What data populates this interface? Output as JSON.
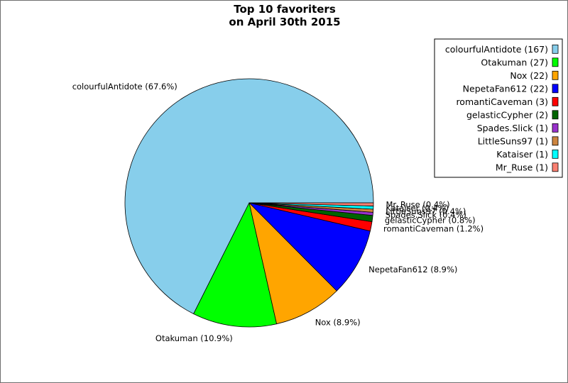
{
  "chart_data": {
    "type": "pie",
    "title": [
      "Top 10 favoriters",
      "on April 30th 2015"
    ],
    "slices": [
      {
        "name": "colourfulAntidote",
        "count": 167,
        "percent_label": "67.6%",
        "color": "#87ceeb"
      },
      {
        "name": "Otakuman",
        "count": 27,
        "percent_label": "10.9%",
        "color": "#00ff00"
      },
      {
        "name": "Nox",
        "count": 22,
        "percent_label": "8.9%",
        "color": "#ffa500"
      },
      {
        "name": "NepetaFan612",
        "count": 22,
        "percent_label": "8.9%",
        "color": "#0000ff"
      },
      {
        "name": "romantiCaveman",
        "count": 3,
        "percent_label": "1.2%",
        "color": "#ff0000"
      },
      {
        "name": "gelasticCypher",
        "count": 2,
        "percent_label": "0.8%",
        "color": "#006400"
      },
      {
        "name": "Spades.Slick",
        "count": 1,
        "percent_label": "0.4%",
        "color": "#9932cc"
      },
      {
        "name": "LittleSuns97",
        "count": 1,
        "percent_label": "0.4%",
        "color": "#cd853f"
      },
      {
        "name": "Kataiser",
        "count": 1,
        "percent_label": "0.4%",
        "color": "#00ffff"
      },
      {
        "name": "Mr_Ruse",
        "count": 1,
        "percent_label": "0.4%",
        "color": "#fa8072"
      }
    ],
    "legend_position": "top-right",
    "start_angle": "0 degrees (east), counter-clockwise"
  }
}
